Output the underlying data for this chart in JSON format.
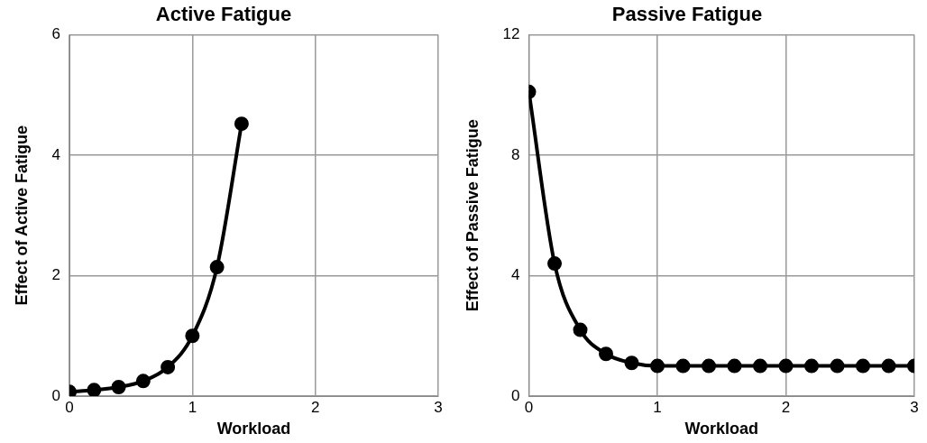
{
  "chart_data": [
    {
      "type": "line",
      "title": "Active Fatigue",
      "xlabel": "Workload",
      "ylabel": "Effect of Active Fatigue",
      "x": [
        0,
        0.2,
        0.4,
        0.6,
        0.8,
        1,
        1.2,
        1.4
      ],
      "series": [
        {
          "color": "#000000",
          "values": [
            0.07,
            0.1,
            0.15,
            0.25,
            0.48,
            1.0,
            2.14,
            4.52
          ]
        }
      ],
      "xlim": [
        0,
        3
      ],
      "xticks": [
        0,
        1,
        2,
        3
      ],
      "ylim": [
        0,
        6
      ],
      "yticks": [
        0,
        2,
        4,
        6
      ],
      "grid": true,
      "marker": "circle",
      "line_style": "solid",
      "legend": false
    },
    {
      "type": "line",
      "title": "Passive Fatigue",
      "xlabel": "Workload",
      "ylabel": "Effect of Passive Fatigue",
      "x": [
        0,
        0.2,
        0.4,
        0.6,
        0.8,
        1,
        1.2,
        1.4,
        1.6,
        1.8,
        2,
        2.2,
        2.4,
        2.6,
        2.8,
        3
      ],
      "series": [
        {
          "color": "#000000",
          "values": [
            10.1,
            4.4,
            2.2,
            1.4,
            1.1,
            1.0,
            1.0,
            1.0,
            1.0,
            1.0,
            1.0,
            1.0,
            1.0,
            1.0,
            1.0,
            1.0
          ]
        }
      ],
      "xlim": [
        0,
        3
      ],
      "xticks": [
        0,
        1,
        2,
        3
      ],
      "ylim": [
        0,
        12
      ],
      "yticks": [
        0,
        4,
        8,
        12
      ],
      "grid": true,
      "marker": "circle",
      "line_style": "solid",
      "legend": false
    }
  ]
}
